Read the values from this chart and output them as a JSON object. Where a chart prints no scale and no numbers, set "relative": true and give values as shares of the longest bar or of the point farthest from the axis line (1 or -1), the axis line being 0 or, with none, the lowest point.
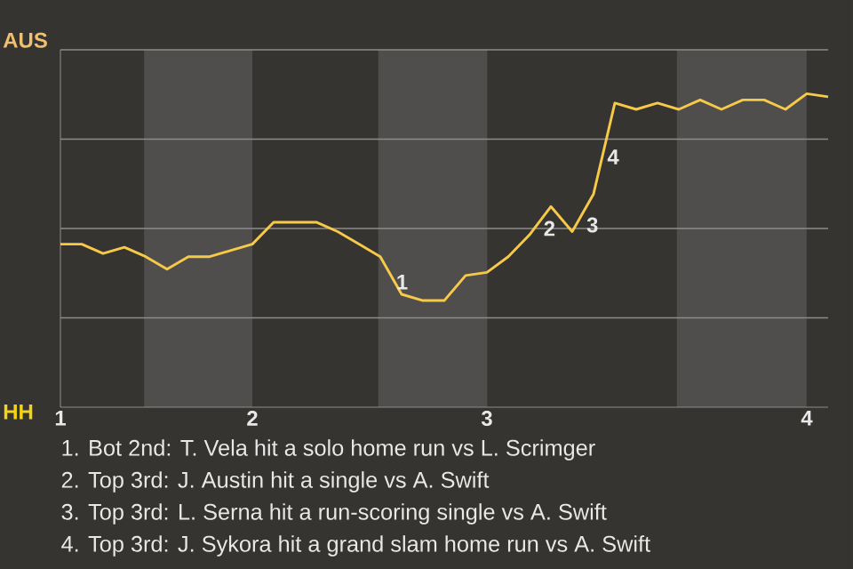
{
  "chart_data": {
    "type": "line",
    "relative": true,
    "categories": [
      "1",
      null,
      null,
      null,
      null,
      null,
      null,
      null,
      null,
      "2",
      null,
      null,
      null,
      null,
      null,
      null,
      null,
      null,
      null,
      null,
      "3",
      null,
      null,
      null,
      null,
      null,
      null,
      null,
      null,
      null,
      null,
      null,
      null,
      null,
      null,
      "4",
      null
    ],
    "series": [
      {
        "color": "#f7c948",
        "values": [
          0.52,
          0.52,
          0.49,
          0.51,
          0.48,
          0.44,
          0.48,
          0.48,
          0.5,
          0.52,
          0.59,
          0.59,
          0.59,
          0.56,
          0.52,
          0.48,
          0.36,
          0.34,
          0.34,
          0.42,
          0.43,
          0.48,
          0.55,
          0.64,
          0.56,
          0.68,
          0.97,
          0.95,
          0.97,
          0.95,
          0.98,
          0.95,
          0.98,
          0.98,
          0.95,
          1,
          0.99
        ]
      }
    ],
    "grid": true,
    "annotations": [
      "AUS",
      "HH",
      "1",
      "2",
      "3",
      "4",
      "1. Bot 2nd: T. Vela hit a solo home run vs L. Scrimger",
      "2. Top 3rd: J. Austin hit a single vs A. Swift",
      "3. Top 3rd: L. Serna hit a run-scoring single vs A. Swift",
      "4. Top 3rd: J. Sykora hit a grand slam home run vs A. Swift"
    ]
  }
}
